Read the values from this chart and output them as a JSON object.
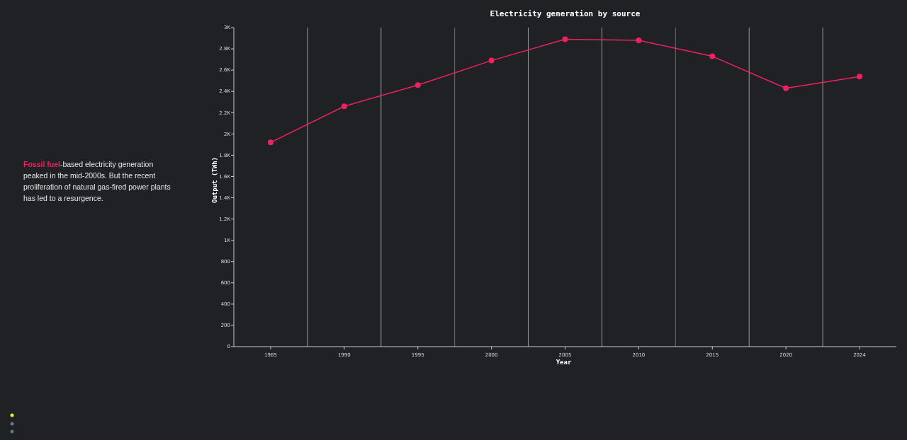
{
  "chart_data": {
    "type": "line",
    "title": "Electricity generation by source",
    "xlabel": "Year",
    "ylabel": "Output (TWh)",
    "categories": [
      "1985",
      "1990",
      "1995",
      "2000",
      "2005",
      "2010",
      "2015",
      "2020",
      "2024"
    ],
    "series": [
      {
        "color": "#f0215f",
        "values": [
          1920,
          2260,
          2460,
          2690,
          2890,
          2880,
          2730,
          2430,
          2540
        ]
      }
    ],
    "ylim": [
      0,
      3000
    ],
    "yticks": [
      0,
      200,
      400,
      600,
      800,
      {
        "value": 1000,
        "label": "1K"
      },
      {
        "value": 1200,
        "label": "1.2K"
      },
      {
        "value": 1400,
        "label": "1.4K"
      },
      {
        "value": 1600,
        "label": "1.6K"
      },
      {
        "value": 1800,
        "label": "1.8K"
      },
      {
        "value": 2000,
        "label": "2K"
      },
      {
        "value": 2200,
        "label": "2.2K"
      },
      {
        "value": 2400,
        "label": "2.4K"
      },
      {
        "value": 2600,
        "label": "2.6K"
      },
      {
        "value": 2800,
        "label": "2.8K"
      },
      {
        "value": 3000,
        "label": "3K"
      }
    ],
    "grid": "x",
    "marker": "circle",
    "annotations": [
      "Fossil fuel",
      "-based electricity generation peaked in the mid-2000s. But the recent proliferation of natural gas-fired power plants has led to a resurgence."
    ]
  }
}
